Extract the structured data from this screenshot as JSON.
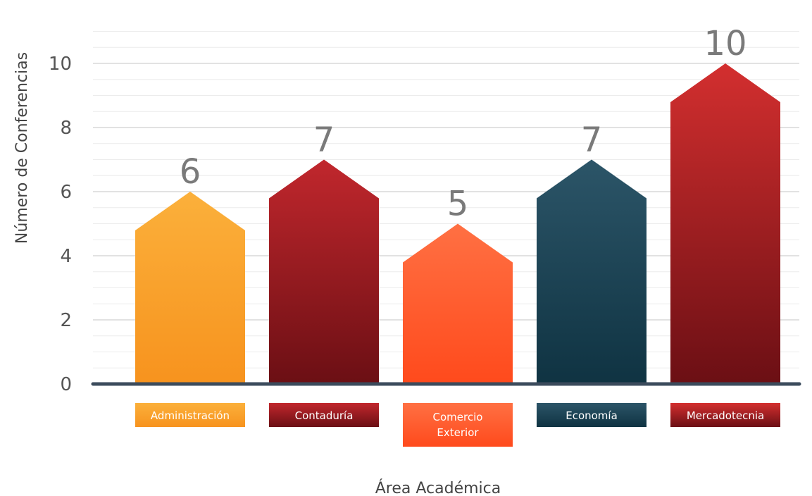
{
  "chart_data": {
    "type": "bar",
    "title": "",
    "xlabel": "Área Académica",
    "ylabel": "Número de Conferencias",
    "ylim": [
      0,
      11
    ],
    "yticks": [
      0,
      2,
      4,
      6,
      8,
      10
    ],
    "grid": true,
    "categories": [
      "Administración",
      "Contaduría",
      "Comercio Exterior",
      "Economía",
      "Mercadotecnia"
    ],
    "values": [
      6,
      7,
      5,
      7,
      10
    ],
    "colors": [
      [
        "#fbb03b",
        "#f7931e"
      ],
      [
        "#c1272d",
        "#6b0f14"
      ],
      [
        "#ff7043",
        "#ff4a1c"
      ],
      [
        "#2c5568",
        "#0f3342"
      ],
      [
        "#d32f2f",
        "#6b0f14"
      ]
    ]
  }
}
